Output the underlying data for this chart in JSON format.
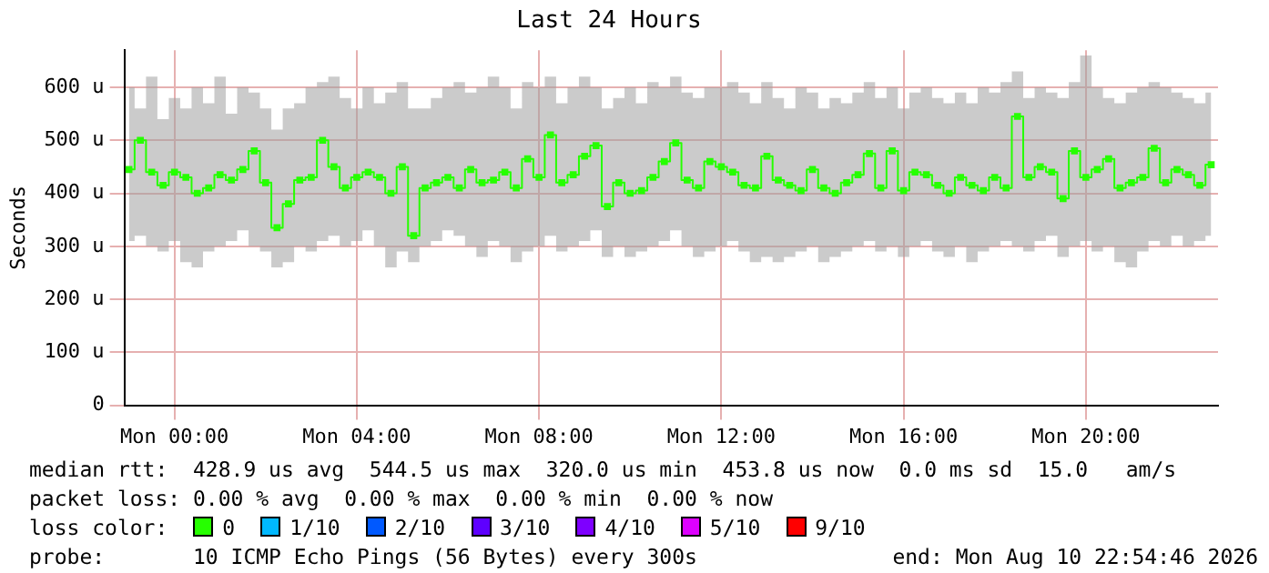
{
  "chart_data": {
    "type": "step",
    "title": "Last 24 Hours",
    "ylabel": "Seconds",
    "x": [
      "2026-08-09T23:00",
      "2026-08-09T23:15",
      "2026-08-09T23:30",
      "2026-08-09T23:45",
      "2026-08-10T00:00",
      "2026-08-10T00:15",
      "2026-08-10T00:30",
      "2026-08-10T00:45",
      "2026-08-10T01:00",
      "2026-08-10T01:15",
      "2026-08-10T01:30",
      "2026-08-10T01:45",
      "2026-08-10T02:00",
      "2026-08-10T02:15",
      "2026-08-10T02:30",
      "2026-08-10T02:45",
      "2026-08-10T03:00",
      "2026-08-10T03:15",
      "2026-08-10T03:30",
      "2026-08-10T03:45",
      "2026-08-10T04:00",
      "2026-08-10T04:15",
      "2026-08-10T04:30",
      "2026-08-10T04:45",
      "2026-08-10T05:00",
      "2026-08-10T05:15",
      "2026-08-10T05:30",
      "2026-08-10T05:45",
      "2026-08-10T06:00",
      "2026-08-10T06:15",
      "2026-08-10T06:30",
      "2026-08-10T06:45",
      "2026-08-10T07:00",
      "2026-08-10T07:15",
      "2026-08-10T07:30",
      "2026-08-10T07:45",
      "2026-08-10T08:00",
      "2026-08-10T08:15",
      "2026-08-10T08:30",
      "2026-08-10T08:45",
      "2026-08-10T09:00",
      "2026-08-10T09:15",
      "2026-08-10T09:30",
      "2026-08-10T09:45",
      "2026-08-10T10:00",
      "2026-08-10T10:15",
      "2026-08-10T10:30",
      "2026-08-10T10:45",
      "2026-08-10T11:00",
      "2026-08-10T11:15",
      "2026-08-10T11:30",
      "2026-08-10T11:45",
      "2026-08-10T12:00",
      "2026-08-10T12:15",
      "2026-08-10T12:30",
      "2026-08-10T12:45",
      "2026-08-10T13:00",
      "2026-08-10T13:15",
      "2026-08-10T13:30",
      "2026-08-10T13:45",
      "2026-08-10T14:00",
      "2026-08-10T14:15",
      "2026-08-10T14:30",
      "2026-08-10T14:45",
      "2026-08-10T15:00",
      "2026-08-10T15:15",
      "2026-08-10T15:30",
      "2026-08-10T15:45",
      "2026-08-10T16:00",
      "2026-08-10T16:15",
      "2026-08-10T16:30",
      "2026-08-10T16:45",
      "2026-08-10T17:00",
      "2026-08-10T17:15",
      "2026-08-10T17:30",
      "2026-08-10T17:45",
      "2026-08-10T18:00",
      "2026-08-10T18:15",
      "2026-08-10T18:30",
      "2026-08-10T18:45",
      "2026-08-10T19:00",
      "2026-08-10T19:15",
      "2026-08-10T19:30",
      "2026-08-10T19:45",
      "2026-08-10T20:00",
      "2026-08-10T20:15",
      "2026-08-10T20:30",
      "2026-08-10T20:45",
      "2026-08-10T21:00",
      "2026-08-10T21:15",
      "2026-08-10T21:30",
      "2026-08-10T21:45",
      "2026-08-10T22:00",
      "2026-08-10T22:15",
      "2026-08-10T22:30",
      "2026-08-10T22:45"
    ],
    "series": [
      {
        "name": "0",
        "color": "#26ff00",
        "values": [
          445,
          500,
          440,
          415,
          440,
          430,
          400,
          410,
          435,
          425,
          445,
          480,
          420,
          335,
          380,
          425,
          430,
          500,
          450,
          410,
          430,
          440,
          430,
          400,
          450,
          320,
          410,
          420,
          430,
          410,
          445,
          420,
          425,
          440,
          410,
          465,
          430,
          510,
          420,
          435,
          470,
          490,
          375,
          420,
          400,
          405,
          430,
          460,
          495,
          425,
          410,
          460,
          450,
          440,
          415,
          410,
          470,
          425,
          415,
          405,
          445,
          410,
          400,
          420,
          435,
          475,
          410,
          480,
          405,
          440,
          435,
          415,
          400,
          430,
          415,
          405,
          430,
          410,
          545,
          430,
          450,
          440,
          390,
          480,
          430,
          445,
          465,
          410,
          420,
          430,
          485,
          420,
          445,
          435,
          415,
          454
        ],
        "lower": [
          310,
          320,
          300,
          290,
          310,
          270,
          260,
          290,
          300,
          310,
          330,
          300,
          290,
          260,
          270,
          300,
          290,
          310,
          320,
          300,
          310,
          330,
          300,
          260,
          290,
          270,
          300,
          310,
          330,
          320,
          300,
          280,
          310,
          300,
          270,
          290,
          300,
          320,
          290,
          300,
          310,
          330,
          280,
          300,
          280,
          290,
          300,
          310,
          330,
          300,
          280,
          290,
          300,
          310,
          290,
          270,
          280,
          270,
          280,
          290,
          300,
          270,
          280,
          290,
          300,
          310,
          290,
          300,
          280,
          300,
          310,
          290,
          280,
          300,
          270,
          290,
          300,
          310,
          300,
          290,
          310,
          320,
          280,
          300,
          310,
          290,
          300,
          270,
          260,
          290,
          310,
          300,
          320,
          300,
          310,
          320
        ],
        "upper": [
          600,
          560,
          620,
          540,
          580,
          560,
          600,
          570,
          620,
          550,
          600,
          590,
          560,
          520,
          560,
          570,
          600,
          610,
          620,
          580,
          560,
          600,
          570,
          590,
          610,
          560,
          560,
          580,
          600,
          610,
          590,
          600,
          620,
          600,
          560,
          610,
          600,
          620,
          570,
          600,
          620,
          600,
          560,
          580,
          600,
          570,
          610,
          600,
          620,
          590,
          580,
          600,
          600,
          610,
          590,
          570,
          610,
          580,
          560,
          600,
          590,
          560,
          580,
          570,
          590,
          610,
          580,
          600,
          560,
          590,
          600,
          580,
          570,
          590,
          570,
          600,
          590,
          610,
          630,
          580,
          600,
          590,
          580,
          610,
          660,
          600,
          580,
          570,
          590,
          600,
          610,
          600,
          590,
          580,
          570,
          590
        ]
      },
      {
        "name": "1/10",
        "color": "#00b8ff",
        "values": [
          null,
          null,
          null,
          null,
          null,
          null,
          null,
          null,
          null,
          null,
          null,
          null,
          null,
          null,
          null,
          null,
          null,
          null,
          null,
          null,
          null,
          null,
          null,
          null,
          null,
          null,
          null,
          null,
          null,
          null,
          null,
          null,
          null,
          null,
          null,
          null,
          null,
          null,
          null,
          null,
          null,
          null,
          null,
          null,
          null,
          null,
          null,
          null,
          null,
          null,
          null,
          null,
          null,
          null,
          null,
          null,
          null,
          null,
          null,
          null,
          null,
          null,
          null,
          null,
          null,
          null,
          null,
          null,
          null,
          null,
          null,
          null,
          null,
          null,
          null,
          null,
          null,
          null,
          null,
          null,
          null,
          null,
          null,
          null,
          null,
          null,
          null,
          null,
          null,
          null,
          null,
          null,
          null,
          null,
          null,
          null
        ]
      },
      {
        "name": "2/10",
        "color": "#0059ff",
        "values": [
          null,
          null,
          null,
          null,
          null,
          null,
          null,
          null,
          null,
          null,
          null,
          null,
          null,
          null,
          null,
          null,
          null,
          null,
          null,
          null,
          null,
          null,
          null,
          null,
          null,
          null,
          null,
          null,
          null,
          null,
          null,
          null,
          null,
          null,
          null,
          null,
          null,
          null,
          null,
          null,
          null,
          null,
          null,
          null,
          null,
          null,
          null,
          null,
          null,
          null,
          null,
          null,
          null,
          null,
          null,
          null,
          null,
          null,
          null,
          null,
          null,
          null,
          null,
          null,
          null,
          null,
          null,
          null,
          null,
          null,
          null,
          null,
          null,
          null,
          null,
          null,
          null,
          null,
          null,
          null,
          null,
          null,
          null,
          null,
          null,
          null,
          null,
          null,
          null,
          null,
          null,
          null,
          null,
          null,
          null,
          null
        ]
      },
      {
        "name": "3/10",
        "color": "#5e00ff",
        "values": [
          null,
          null,
          null,
          null,
          null,
          null,
          null,
          null,
          null,
          null,
          null,
          null,
          null,
          null,
          null,
          null,
          null,
          null,
          null,
          null,
          null,
          null,
          null,
          null,
          null,
          null,
          null,
          null,
          null,
          null,
          null,
          null,
          null,
          null,
          null,
          null,
          null,
          null,
          null,
          null,
          null,
          null,
          null,
          null,
          null,
          null,
          null,
          null,
          null,
          null,
          null,
          null,
          null,
          null,
          null,
          null,
          null,
          null,
          null,
          null,
          null,
          null,
          null,
          null,
          null,
          null,
          null,
          null,
          null,
          null,
          null,
          null,
          null,
          null,
          null,
          null,
          null,
          null,
          null,
          null,
          null,
          null,
          null,
          null,
          null,
          null,
          null,
          null,
          null,
          null,
          null,
          null,
          null,
          null,
          null,
          null
        ]
      },
      {
        "name": "4/10",
        "color": "#7e00ff",
        "values": [
          null,
          null,
          null,
          null,
          null,
          null,
          null,
          null,
          null,
          null,
          null,
          null,
          null,
          null,
          null,
          null,
          null,
          null,
          null,
          null,
          null,
          null,
          null,
          null,
          null,
          null,
          null,
          null,
          null,
          null,
          null,
          null,
          null,
          null,
          null,
          null,
          null,
          null,
          null,
          null,
          null,
          null,
          null,
          null,
          null,
          null,
          null,
          null,
          null,
          null,
          null,
          null,
          null,
          null,
          null,
          null,
          null,
          null,
          null,
          null,
          null,
          null,
          null,
          null,
          null,
          null,
          null,
          null,
          null,
          null,
          null,
          null,
          null,
          null,
          null,
          null,
          null,
          null,
          null,
          null,
          null,
          null,
          null,
          null,
          null,
          null,
          null,
          null,
          null,
          null,
          null,
          null,
          null,
          null,
          null,
          null
        ]
      },
      {
        "name": "5/10",
        "color": "#dd00ff",
        "values": [
          null,
          null,
          null,
          null,
          null,
          null,
          null,
          null,
          null,
          null,
          null,
          null,
          null,
          null,
          null,
          null,
          null,
          null,
          null,
          null,
          null,
          null,
          null,
          null,
          null,
          null,
          null,
          null,
          null,
          null,
          null,
          null,
          null,
          null,
          null,
          null,
          null,
          null,
          null,
          null,
          null,
          null,
          null,
          null,
          null,
          null,
          null,
          null,
          null,
          null,
          null,
          null,
          null,
          null,
          null,
          null,
          null,
          null,
          null,
          null,
          null,
          null,
          null,
          null,
          null,
          null,
          null,
          null,
          null,
          null,
          null,
          null,
          null,
          null,
          null,
          null,
          null,
          null,
          null,
          null,
          null,
          null,
          null,
          null,
          null,
          null,
          null,
          null,
          null,
          null,
          null,
          null,
          null,
          null,
          null,
          null
        ]
      },
      {
        "name": "9/10",
        "color": "#ff0000",
        "values": [
          null,
          null,
          null,
          null,
          null,
          null,
          null,
          null,
          null,
          null,
          null,
          null,
          null,
          null,
          null,
          null,
          null,
          null,
          null,
          null,
          null,
          null,
          null,
          null,
          null,
          null,
          null,
          null,
          null,
          null,
          null,
          null,
          null,
          null,
          null,
          null,
          null,
          null,
          null,
          null,
          null,
          null,
          null,
          null,
          null,
          null,
          null,
          null,
          null,
          null,
          null,
          null,
          null,
          null,
          null,
          null,
          null,
          null,
          null,
          null,
          null,
          null,
          null,
          null,
          null,
          null,
          null,
          null,
          null,
          null,
          null,
          null,
          null,
          null,
          null,
          null,
          null,
          null,
          null,
          null,
          null,
          null,
          null,
          null,
          null,
          null,
          null,
          null,
          null,
          null,
          null,
          null,
          null,
          null,
          null,
          null
        ]
      }
    ],
    "legend_title": "loss color:",
    "legend": "bottom",
    "marker": "square",
    "grid": true,
    "xlim": [
      "2026-08-09T22:54",
      "2026-08-10T22:54"
    ],
    "xticks": [
      {
        "value": "2026-08-10T00:00",
        "label": "Mon 00:00"
      },
      {
        "value": "2026-08-10T04:00",
        "label": "Mon 04:00"
      },
      {
        "value": "2026-08-10T08:00",
        "label": "Mon 08:00"
      },
      {
        "value": "2026-08-10T12:00",
        "label": "Mon 12:00"
      },
      {
        "value": "2026-08-10T16:00",
        "label": "Mon 16:00"
      },
      {
        "value": "2026-08-10T20:00",
        "label": "Mon 20:00"
      }
    ],
    "ylim": [
      0,
      670
    ],
    "yticks": [
      0,
      {
        "value": 100,
        "label": "100 u"
      },
      {
        "value": 200,
        "label": "200 u"
      },
      {
        "value": 300,
        "label": "300 u"
      },
      {
        "value": 400,
        "label": "400 u"
      },
      {
        "value": 500,
        "label": "500 u"
      },
      {
        "value": 600,
        "label": "600 u"
      }
    ],
    "annotations": [
      "median rtt:  428.9 us avg  544.5 us max  320.0 us min  453.8 us now  0.0 ms sd  15.0   am/s",
      "packet loss: 0.00 % avg  0.00 % max  0.00 % min  0.00 % now",
      "probe:       10 ICMP Echo Pings (56 Bytes) every 300s",
      "end: Mon Aug 10 22:54:46 2026"
    ]
  }
}
